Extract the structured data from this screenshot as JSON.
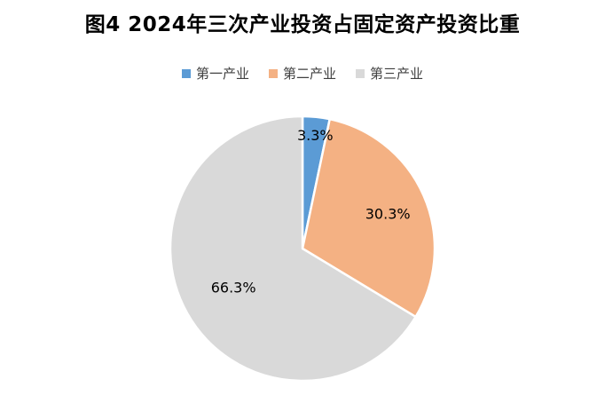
{
  "chart_data": {
    "type": "pie",
    "title": "图4  2024年三次产业投资占固定资产投资比重",
    "legend_position": "top",
    "categories": [
      "第一产业",
      "第二产业",
      "第三产业"
    ],
    "values": [
      3.3,
      30.3,
      66.3
    ],
    "value_labels": [
      "3.3%",
      "30.3%",
      "66.3%"
    ],
    "colors": [
      "#5B9BD5",
      "#F4B183",
      "#D9D9D9"
    ]
  }
}
